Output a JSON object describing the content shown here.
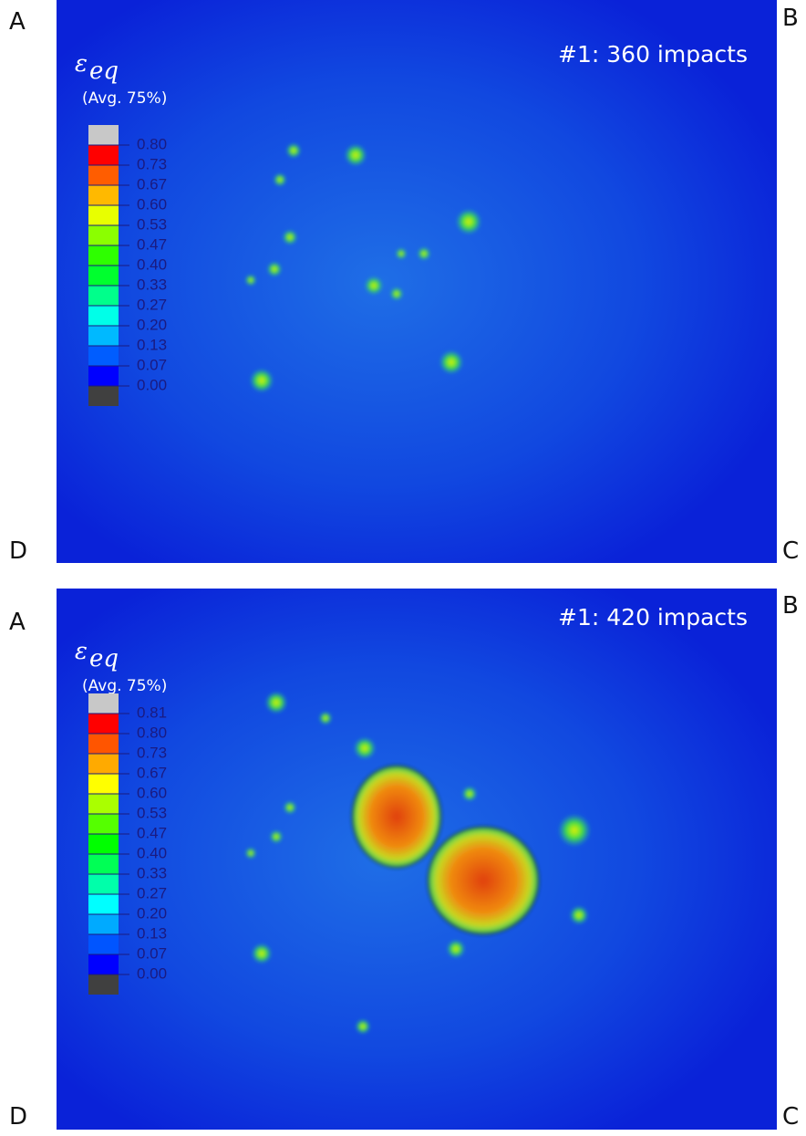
{
  "panels": [
    {
      "corner_labels": [
        "A",
        "B",
        "C",
        "D"
      ],
      "title": "#1: 360 impacts",
      "legend": {
        "symbol": "ε",
        "subscript": "eq",
        "note": "(Avg. 75%)",
        "labels": [
          "0.80",
          "0.73",
          "0.67",
          "0.60",
          "0.53",
          "0.47",
          "0.40",
          "0.33",
          "0.27",
          "0.20",
          "0.13",
          "0.07",
          "0.00"
        ]
      }
    },
    {
      "corner_labels": [
        "A",
        "B",
        "C",
        "D"
      ],
      "title": "#1: 420 impacts",
      "legend": {
        "symbol": "ε",
        "subscript": "eq",
        "note": "(Avg. 75%)",
        "labels": [
          "0.81",
          "0.80",
          "0.73",
          "0.67",
          "0.60",
          "0.53",
          "0.47",
          "0.40",
          "0.33",
          "0.27",
          "0.20",
          "0.13",
          "0.07",
          "0.00"
        ]
      }
    }
  ]
}
